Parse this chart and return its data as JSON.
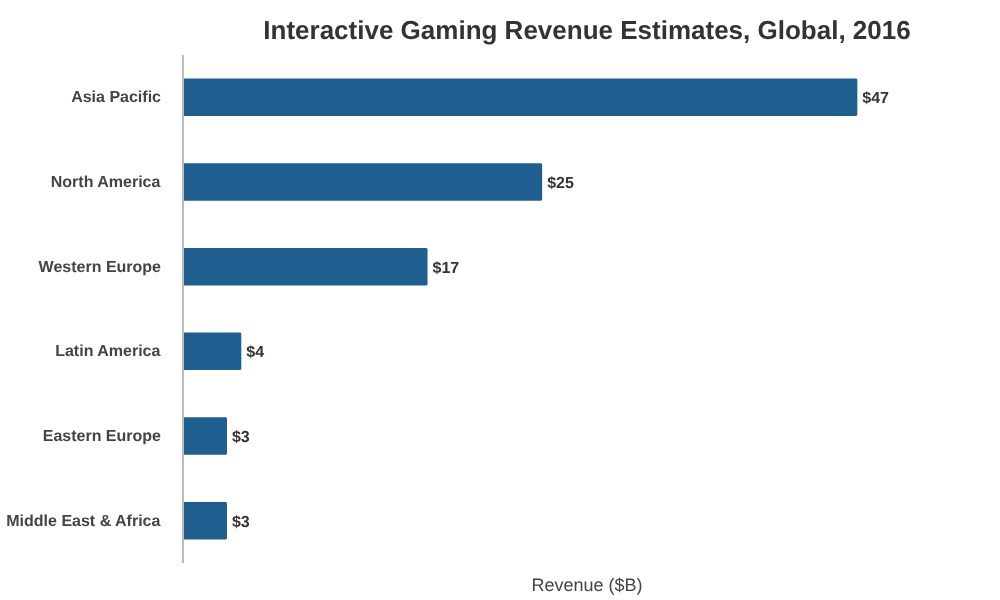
{
  "chart_data": {
    "type": "bar",
    "orientation": "horizontal",
    "title": "Interactive Gaming Revenue Estimates, Global, 2016",
    "xlabel": "Revenue ($B)",
    "categories": [
      "Asia Pacific",
      "North America",
      "Western Europe",
      "Latin America",
      "Eastern Europe",
      "Middle East & Africa"
    ],
    "values": [
      47,
      25,
      17,
      4,
      3,
      3
    ],
    "value_labels": [
      "$47",
      "$25",
      "$17",
      "$4",
      "$3",
      "$3"
    ],
    "color": "#1f5f8f",
    "grid": false
  }
}
